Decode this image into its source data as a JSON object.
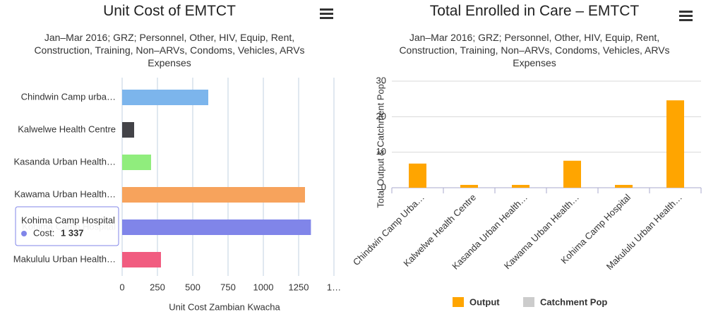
{
  "chart_data": [
    {
      "type": "hbar",
      "title": "Unit Cost of EMTCT",
      "subtitle": "Jan–Mar 2016; GRZ; Personnel, Other, HIV, Equip, Rent, Construction, Training, Non–ARVs, Condoms, Vehicles, ARVs Expenses",
      "categories": [
        "Chindwin Camp urba…",
        "Kalwelwe Health Centre",
        "Kasanda Urban Health…",
        "Kawama Urban Health…",
        "Kohima Camp Hospital",
        "Makululu Urban Health…"
      ],
      "values": [
        610,
        85,
        205,
        1295,
        1337,
        275
      ],
      "value_labels": [
        null,
        null,
        null,
        null,
        "1 337",
        null
      ],
      "tooltip_label": "Cost:",
      "colors": [
        "#7cb5ec",
        "#434348",
        "#90ed7d",
        "#f7a35c",
        "#8085e9",
        "#f15c80"
      ],
      "xlabel": "Unit Cost Zambian Kwacha",
      "xlim": [
        0,
        1500
      ],
      "xticks": [
        0,
        250,
        500,
        750,
        1000,
        1250,
        {
          "value": 1500,
          "label": "1…"
        }
      ],
      "grid": true
    },
    {
      "type": "bar",
      "title": "Total Enrolled in Care – EMTCT",
      "subtitle": "Jan–Mar 2016; GRZ; Personnel, Other, HIV, Equip, Rent, Construction, Training, Non–ARVs, Condoms, Vehicles, ARVs Expenses",
      "categories": [
        "Chindwin Camp Urba…",
        "Kalwelwe Health Centre",
        "Kasanda Urban Health…",
        "Kawama Urban Health…",
        "Kohima Camp Hospital",
        "Makululu Urban Health…"
      ],
      "series": [
        {
          "name": "Output",
          "color": "#ffa500",
          "values": [
            6.8,
            0.8,
            0.8,
            7.6,
            0.8,
            24.6
          ]
        },
        {
          "name": "Catchment Pop",
          "color": "#cccccc",
          "hidden": true,
          "values": [
            null,
            null,
            null,
            null,
            null,
            null
          ]
        }
      ],
      "ylabel": "Total Output & Catchment Pop.",
      "ylim": [
        0,
        30
      ],
      "yticks": [
        0,
        10,
        20,
        30
      ],
      "grid": true
    }
  ]
}
